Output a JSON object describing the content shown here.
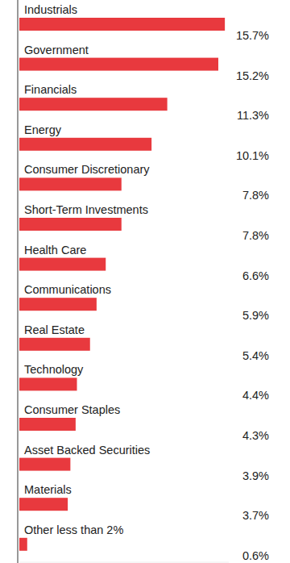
{
  "chart_data": {
    "type": "bar",
    "orientation": "horizontal",
    "categories": [
      "Industrials",
      "Government",
      "Financials",
      "Energy",
      "Consumer Discretionary",
      "Short-Term Investments",
      "Health Care",
      "Communications",
      "Real Estate",
      "Technology",
      "Consumer Staples",
      "Asset Backed Securities",
      "Materials",
      "Other less than 2%"
    ],
    "values": [
      15.7,
      15.2,
      11.3,
      10.1,
      7.8,
      7.8,
      6.6,
      5.9,
      5.4,
      4.4,
      4.3,
      3.9,
      3.7,
      0.6
    ],
    "value_labels": [
      "15.7%",
      "15.2%",
      "11.3%",
      "10.1%",
      "7.8%",
      "7.8%",
      "6.6%",
      "5.9%",
      "5.4%",
      "4.4%",
      "4.3%",
      "3.9%",
      "3.7%",
      "0.6%"
    ],
    "color": "#e8393e",
    "xlim": [
      0,
      16
    ],
    "data_labels": true,
    "tick_labels": false,
    "grid": false
  }
}
